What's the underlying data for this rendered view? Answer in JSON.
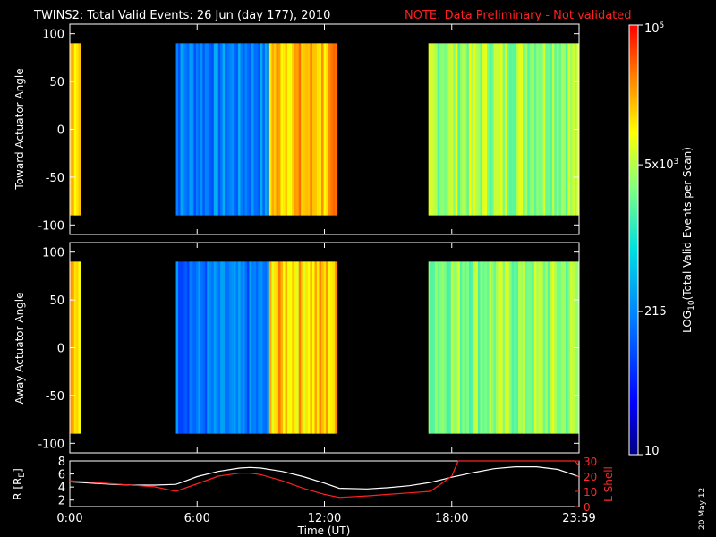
{
  "header": {
    "title": "TWINS2: Total Valid Events: 26 Jun (day 177), 2010",
    "note": "NOTE: Data Preliminary - Not validated"
  },
  "footer": {
    "date_stamp": "20 May 12"
  },
  "colors": {
    "background": "#000000",
    "axes": "#ffffff",
    "note": "#ff2020",
    "lshell": "#ff2020",
    "radius": "#ffffff"
  },
  "colorbar": {
    "label": "LOG10(Total Valid Events per Scan)",
    "label_main": "LOG",
    "label_sub": "10",
    "label_rest": "(Total Valid  Events per Scan)",
    "scale": "log",
    "range": [
      10,
      100000
    ],
    "ticks": [
      {
        "value": 10,
        "text": "10"
      },
      {
        "value": 215,
        "text": "215"
      },
      {
        "value": 5000,
        "text": "5x10",
        "sup": "3"
      },
      {
        "value": 100000,
        "text": "10",
        "sup": "5"
      }
    ]
  },
  "chart_data": [
    {
      "type": "heatmap",
      "name": "toward",
      "ylabel": "Toward Actuator Angle",
      "ylim": [
        -110,
        110
      ],
      "yticks": [
        "100",
        "50",
        "0",
        "-50",
        "-100"
      ],
      "ytick_values": [
        100,
        50,
        0,
        -50,
        -100
      ],
      "xlim": [
        0,
        24
      ],
      "angle_range": [
        -90,
        90
      ],
      "segments": [
        {
          "start_h": 0.0,
          "end_h": 0.5,
          "level": 0.82
        },
        {
          "start_h": 5.0,
          "end_h": 9.4,
          "level": 0.32
        },
        {
          "start_h": 9.4,
          "end_h": 12.6,
          "level": 0.82
        },
        {
          "start_h": 16.9,
          "end_h": 24.0,
          "level": 0.66
        }
      ]
    },
    {
      "type": "heatmap",
      "name": "away",
      "ylabel": "Away Actuator Angle",
      "ylim": [
        -110,
        110
      ],
      "yticks": [
        "100",
        "50",
        "0",
        "-50",
        "-100"
      ],
      "ytick_values": [
        100,
        50,
        0,
        -50,
        -100
      ],
      "xlim": [
        0,
        24
      ],
      "angle_range": [
        -90,
        90
      ],
      "segments": [
        {
          "start_h": 0.0,
          "end_h": 0.5,
          "level": 0.82
        },
        {
          "start_h": 5.0,
          "end_h": 9.4,
          "level": 0.3
        },
        {
          "start_h": 9.4,
          "end_h": 12.6,
          "level": 0.8
        },
        {
          "start_h": 16.9,
          "end_h": 24.0,
          "level": 0.64
        }
      ]
    },
    {
      "type": "line",
      "name": "orbit",
      "xlabel": "Time (UT)",
      "xlim": [
        0,
        24
      ],
      "xticks": [
        "0:00",
        "6:00",
        "12:00",
        "18:00",
        "23:59"
      ],
      "xtick_values": [
        0,
        6,
        12,
        18,
        24
      ],
      "left_axis": {
        "label_main": "R [R",
        "label_sub": "E",
        "label_end": "]",
        "ylim": [
          1,
          8
        ],
        "ticks": [
          "2",
          "4",
          "6",
          "8"
        ],
        "tick_values": [
          2,
          4,
          6,
          8
        ]
      },
      "right_axis": {
        "label": "L Shell",
        "ylim": [
          0,
          30
        ],
        "ticks": [
          "0",
          "10",
          "20",
          "30"
        ],
        "tick_values": [
          0,
          10,
          20,
          30
        ]
      },
      "series": [
        {
          "name": "R",
          "axis": "left",
          "x": [
            0,
            1,
            2,
            3,
            4,
            5,
            5.5,
            6,
            7,
            8,
            8.5,
            9,
            10,
            11,
            12,
            12.7,
            14,
            15,
            16,
            17,
            18,
            19,
            20,
            21,
            22,
            23,
            24
          ],
          "y": [
            4.8,
            4.6,
            4.4,
            4.3,
            4.3,
            4.4,
            5.0,
            5.6,
            6.4,
            6.9,
            7.0,
            6.9,
            6.4,
            5.6,
            4.6,
            3.8,
            3.7,
            3.9,
            4.2,
            4.7,
            5.5,
            6.2,
            6.8,
            7.1,
            7.1,
            6.7,
            5.6
          ]
        },
        {
          "name": "L Shell",
          "axis": "right",
          "x": [
            0,
            1,
            2,
            3,
            4,
            5,
            6,
            7,
            8,
            8.5,
            9,
            10,
            11,
            12,
            12.7,
            14,
            15,
            16,
            17,
            18,
            18.3,
            23.8,
            24
          ],
          "y": [
            17,
            16,
            15,
            14,
            13,
            10,
            15,
            20,
            22,
            22,
            21,
            17,
            12,
            8,
            6,
            7,
            8,
            9,
            10,
            20,
            31,
            31,
            27
          ]
        }
      ]
    }
  ]
}
